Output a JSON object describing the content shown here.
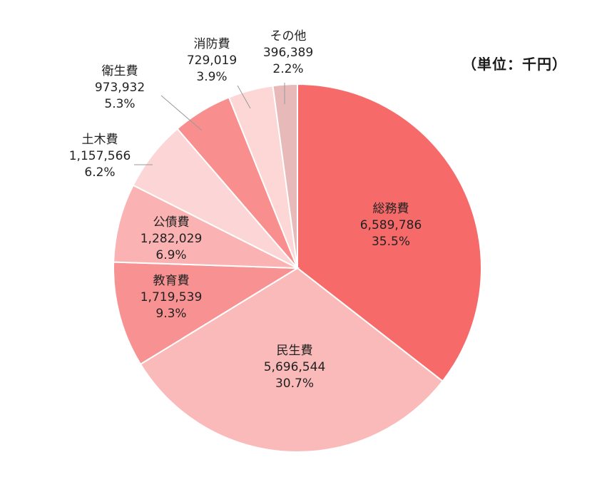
{
  "unit_label": "（単位：千円）",
  "chart_data": {
    "type": "pie",
    "title": "",
    "unit": "千円",
    "slices": [
      {
        "category": "総務費",
        "value": "6,589,786",
        "percent": "35.5%",
        "amount": 6589786,
        "color": "#f76a6a"
      },
      {
        "category": "民生費",
        "value": "5,696,544",
        "percent": "30.7%",
        "amount": 5696544,
        "color": "#fbbaba"
      },
      {
        "category": "教育費",
        "value": "1,719,539",
        "percent": "9.3%",
        "amount": 1719539,
        "color": "#f89292"
      },
      {
        "category": "公債費",
        "value": "1,282,029",
        "percent": "6.9%",
        "amount": 1282029,
        "color": "#fab2b2"
      },
      {
        "category": "土木費",
        "value": "1,157,566",
        "percent": "6.2%",
        "amount": 1157566,
        "color": "#fcd6d6"
      },
      {
        "category": "衛生費",
        "value": "973,932",
        "percent": "5.3%",
        "amount": 973932,
        "color": "#f88e8e"
      },
      {
        "category": "消防費",
        "value": "729,019",
        "percent": "3.9%",
        "amount": 729019,
        "color": "#fdd6d6"
      },
      {
        "category": "その他",
        "value": "396,389",
        "percent": "2.2%",
        "amount": 396389,
        "color": "#e8b9b9"
      }
    ]
  }
}
